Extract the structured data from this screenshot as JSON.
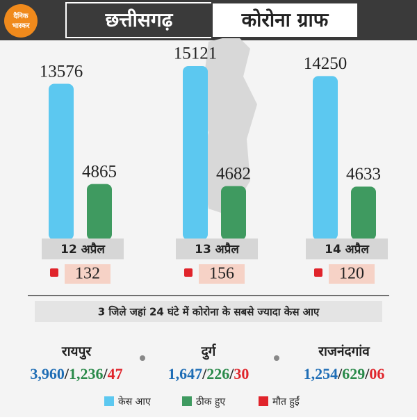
{
  "logo": {
    "line1": "दैनिक",
    "line2": "भास्कर"
  },
  "header": {
    "title": "छत्तीसगढ़",
    "subtitle": "कोरोना ग्राफ"
  },
  "chart_data": {
    "type": "bar",
    "categories": [
      "12 अप्रैल",
      "13 अप्रैल",
      "14 अप्रैल"
    ],
    "series": [
      {
        "name": "केस आए",
        "color": "#5cc8f0",
        "values": [
          13576,
          15121,
          14250
        ]
      },
      {
        "name": "ठीक हुए",
        "color": "#3f9a60",
        "values": [
          4865,
          4682,
          4633
        ]
      },
      {
        "name": "मौत हुईं",
        "color": "#e0242b",
        "values": [
          132,
          156,
          120
        ]
      }
    ]
  },
  "districts": {
    "heading": "3 जिले जहां 24 घंटे में कोरोना के सबसे ज्यादा केस आए",
    "separator": "/",
    "items": [
      {
        "name": "रायपुर",
        "cases": "3,960",
        "recovered": "1,236",
        "deaths": "47"
      },
      {
        "name": "दुर्ग",
        "cases": "1,647",
        "recovered": "226",
        "deaths": "30"
      },
      {
        "name": "राजनंदगांव",
        "cases": "1,254",
        "recovered": "629",
        "deaths": "06"
      }
    ]
  }
}
